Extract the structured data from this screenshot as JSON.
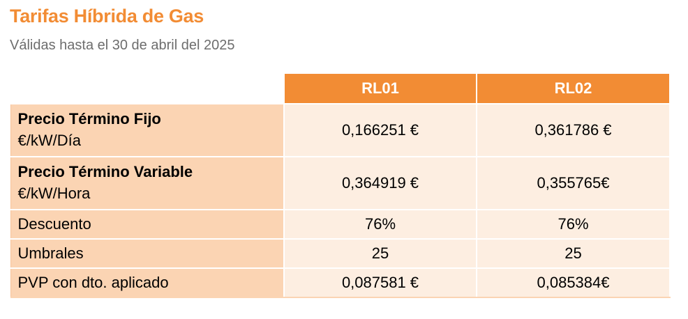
{
  "header": {
    "title": "Tarifas Híbrida de Gas",
    "subtitle": "Válidas hasta el 30 de abril del 2025"
  },
  "table": {
    "columns": [
      "RL01",
      "RL02"
    ],
    "rows": [
      {
        "label": "Precio Término Fijo",
        "unit": "€/kW/Día",
        "values": [
          "0,166251 €",
          "0,361786 €"
        ]
      },
      {
        "label": "Precio Término Variable",
        "unit": "€/kW/Hora",
        "values": [
          "0,364919 €",
          "0,355765€"
        ]
      },
      {
        "label": "Descuento",
        "values": [
          "76%",
          "76%"
        ]
      },
      {
        "label": "Umbrales",
        "values": [
          "25",
          "25"
        ]
      },
      {
        "label": "PVP con dto. aplicado",
        "values": [
          "0,087581 €",
          "0,085384€"
        ]
      }
    ]
  },
  "colors": {
    "accent": "#f28c34",
    "label_bg": "#fbd4b3",
    "value_bg": "#fdeee1"
  }
}
